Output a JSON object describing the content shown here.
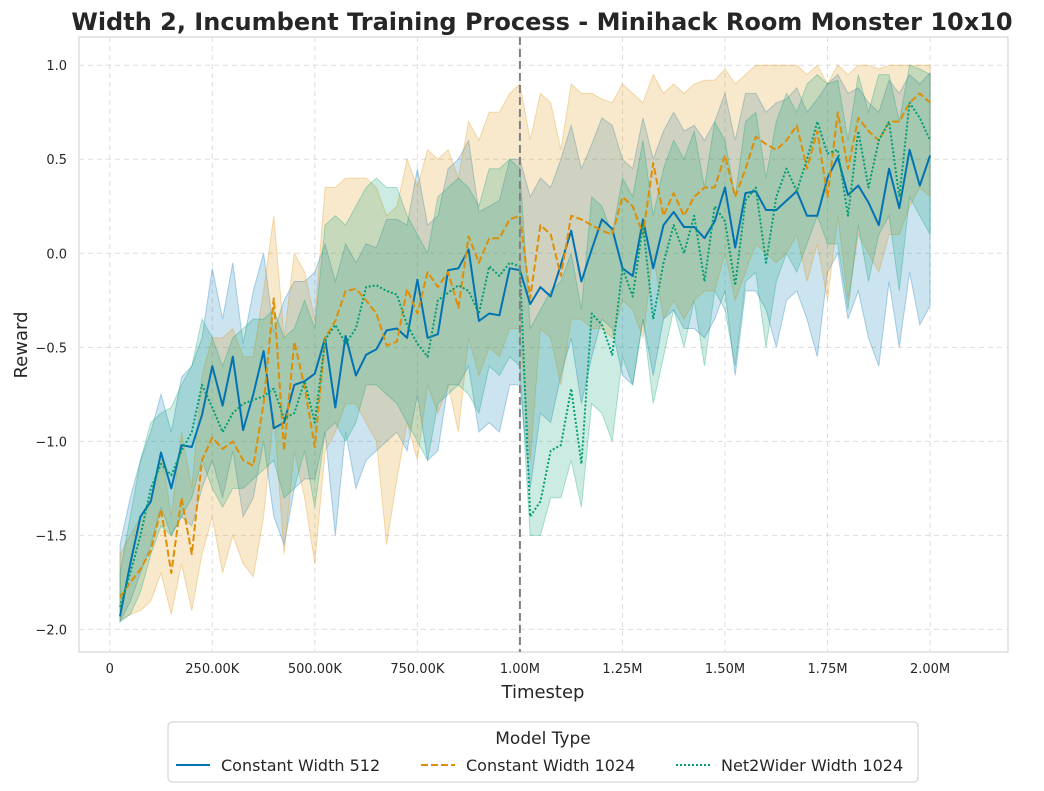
{
  "chart_data": {
    "type": "line",
    "title": "Width 2, Incumbent Training Process - Minihack Room Monster 10x10",
    "xlabel": "Timestep",
    "ylabel": "Reward",
    "xlim": [
      -75000,
      2190000
    ],
    "ylim": [
      -2.12,
      1.15
    ],
    "x_ticks": [
      0,
      250000,
      500000,
      750000,
      1000000,
      1250000,
      1500000,
      1750000,
      2000000
    ],
    "x_tick_labels": [
      "0",
      "250.00K",
      "500.00K",
      "750.00K",
      "1.00M",
      "1.25M",
      "1.50M",
      "1.75M",
      "2.00M"
    ],
    "y_ticks": [
      -2.0,
      -1.5,
      -1.0,
      -0.5,
      0.0,
      0.5,
      1.0
    ],
    "y_tick_labels": [
      "−2.0",
      "−1.5",
      "−1.0",
      "−0.5",
      "0.0",
      "0.5",
      "1.0"
    ],
    "grid": true,
    "vertical_line_x": 1000000,
    "legend": {
      "title": "Model Type",
      "placement": "below"
    },
    "x": [
      25000,
      50000,
      75000,
      100000,
      125000,
      150000,
      175000,
      200000,
      225000,
      250000,
      275000,
      300000,
      325000,
      350000,
      375000,
      400000,
      425000,
      450000,
      475000,
      500000,
      525000,
      550000,
      575000,
      600000,
      625000,
      650000,
      675000,
      700000,
      725000,
      750000,
      775000,
      800000,
      825000,
      850000,
      875000,
      900000,
      925000,
      950000,
      975000,
      1000000,
      1025000,
      1050000,
      1075000,
      1100000,
      1125000,
      1150000,
      1175000,
      1200000,
      1225000,
      1250000,
      1275000,
      1300000,
      1325000,
      1350000,
      1375000,
      1400000,
      1425000,
      1450000,
      1475000,
      1500000,
      1525000,
      1550000,
      1575000,
      1600000,
      1625000,
      1650000,
      1675000,
      1700000,
      1725000,
      1750000,
      1775000,
      1800000,
      1825000,
      1850000,
      1875000,
      1900000,
      1925000,
      1950000,
      1975000,
      2000000
    ],
    "series": [
      {
        "name": "Constant Width 512",
        "color": "#0173b2",
        "dash": "solid",
        "values": [
          -1.93,
          -1.65,
          -1.4,
          -1.32,
          -1.06,
          -1.25,
          -1.02,
          -1.03,
          -0.86,
          -0.6,
          -0.81,
          -0.55,
          -0.94,
          -0.75,
          -0.52,
          -0.93,
          -0.9,
          -0.7,
          -0.68,
          -0.64,
          -0.45,
          -0.82,
          -0.44,
          -0.65,
          -0.54,
          -0.51,
          -0.41,
          -0.4,
          -0.45,
          -0.14,
          -0.45,
          -0.43,
          -0.09,
          -0.08,
          0.02,
          -0.36,
          -0.32,
          -0.33,
          -0.08,
          -0.09,
          -0.27,
          -0.18,
          -0.23,
          -0.06,
          0.12,
          -0.15,
          0.02,
          0.18,
          0.13,
          -0.08,
          -0.12,
          0.18,
          -0.08,
          0.15,
          0.22,
          0.14,
          0.14,
          0.08,
          0.17,
          0.35,
          0.03,
          0.32,
          0.33,
          0.23,
          0.23,
          0.28,
          0.33,
          0.2,
          0.2,
          0.4,
          0.51,
          0.31,
          0.36,
          0.27,
          0.15,
          0.45,
          0.24,
          0.55,
          0.36,
          0.52
        ],
        "lower": [
          -1.96,
          -1.85,
          -1.7,
          -1.55,
          -1.35,
          -1.5,
          -1.4,
          -1.45,
          -1.25,
          -1.1,
          -1.3,
          -1.05,
          -1.4,
          -1.3,
          -1.0,
          -1.4,
          -1.55,
          -1.25,
          -1.2,
          -1.2,
          -0.95,
          -1.5,
          -0.95,
          -1.25,
          -1.1,
          -1.05,
          -1.0,
          -0.95,
          -1.05,
          -0.75,
          -1.1,
          -1.05,
          -0.7,
          -0.7,
          -0.6,
          -0.95,
          -0.9,
          -0.95,
          -0.7,
          -0.7,
          -1.25,
          -0.85,
          -0.9,
          -0.65,
          -0.45,
          -0.8,
          -0.55,
          -0.35,
          -0.4,
          -0.65,
          -0.7,
          -0.35,
          -0.65,
          -0.35,
          -0.3,
          -0.4,
          -0.4,
          -0.45,
          -0.35,
          -0.2,
          -0.65,
          -0.2,
          -0.2,
          -0.3,
          -0.5,
          -0.25,
          -0.2,
          -0.35,
          -0.55,
          -0.1,
          0.0,
          -0.35,
          -0.2,
          -0.45,
          -0.6,
          -0.15,
          -0.5,
          -0.1,
          -0.38,
          -0.28
        ],
        "upper": [
          -1.55,
          -1.3,
          -1.1,
          -0.95,
          -0.75,
          -0.95,
          -0.66,
          -0.6,
          -0.45,
          -0.08,
          -0.35,
          -0.05,
          -0.48,
          -0.2,
          0.0,
          -0.42,
          -0.25,
          -0.15,
          -0.15,
          -0.1,
          0.05,
          -0.15,
          0.05,
          -0.05,
          0.05,
          0.03,
          0.18,
          0.18,
          0.15,
          0.45,
          0.15,
          0.2,
          0.45,
          0.5,
          0.6,
          0.22,
          0.25,
          0.28,
          0.5,
          0.5,
          0.3,
          0.4,
          0.35,
          0.5,
          0.68,
          0.45,
          0.58,
          0.72,
          0.68,
          0.5,
          0.45,
          0.72,
          0.5,
          0.65,
          0.75,
          0.65,
          0.68,
          0.6,
          0.7,
          0.85,
          0.6,
          0.85,
          0.85,
          0.75,
          0.8,
          0.82,
          0.88,
          0.75,
          0.82,
          0.9,
          0.95,
          0.85,
          0.88,
          0.8,
          0.75,
          0.92,
          0.85,
          0.95,
          0.9,
          0.96
        ]
      },
      {
        "name": "Constant Width 1024",
        "color": "#de8f05",
        "dash": "dashed",
        "values": [
          -1.83,
          -1.75,
          -1.68,
          -1.58,
          -1.36,
          -1.7,
          -1.3,
          -1.6,
          -1.1,
          -0.98,
          -1.04,
          -1.0,
          -1.1,
          -1.13,
          -0.8,
          -0.24,
          -1.05,
          -0.47,
          -0.71,
          -1.03,
          -0.45,
          -0.36,
          -0.2,
          -0.19,
          -0.25,
          -0.32,
          -0.49,
          -0.47,
          -0.19,
          -0.32,
          -0.1,
          -0.18,
          -0.1,
          -0.29,
          0.09,
          -0.05,
          0.08,
          0.08,
          0.18,
          0.2,
          -0.24,
          0.15,
          0.1,
          -0.12,
          0.2,
          0.18,
          0.15,
          0.12,
          0.1,
          0.3,
          0.25,
          0.1,
          0.48,
          0.2,
          0.32,
          0.2,
          0.3,
          0.35,
          0.35,
          0.52,
          0.3,
          0.45,
          0.62,
          0.58,
          0.55,
          0.6,
          0.68,
          0.45,
          0.65,
          0.3,
          0.75,
          0.45,
          0.72,
          0.65,
          0.6,
          0.7,
          0.7,
          0.8,
          0.85,
          0.8
        ],
        "lower": [
          -1.95,
          -1.92,
          -1.9,
          -1.85,
          -1.7,
          -1.92,
          -1.65,
          -1.9,
          -1.6,
          -1.4,
          -1.7,
          -1.5,
          -1.65,
          -1.72,
          -1.4,
          -0.85,
          -1.6,
          -1.05,
          -1.3,
          -1.65,
          -1.05,
          -0.95,
          -0.8,
          -0.8,
          -0.9,
          -1.0,
          -1.55,
          -1.2,
          -0.9,
          -1.1,
          -0.7,
          -0.85,
          -0.7,
          -0.95,
          -0.45,
          -0.65,
          -0.5,
          -0.55,
          -0.4,
          -0.4,
          -1.1,
          -0.4,
          -0.45,
          -0.7,
          -0.35,
          -0.35,
          -0.4,
          -0.4,
          -0.45,
          -0.25,
          -0.3,
          -0.45,
          0.0,
          -0.35,
          -0.25,
          -0.35,
          -0.25,
          -0.2,
          -0.2,
          0.0,
          -0.25,
          -0.1,
          0.05,
          0.0,
          -0.05,
          0.0,
          0.1,
          -0.15,
          0.05,
          -0.25,
          0.2,
          -0.25,
          0.1,
          0.0,
          -0.1,
          0.1,
          0.1,
          0.25,
          0.35,
          0.3
        ],
        "upper": [
          -1.6,
          -1.5,
          -1.4,
          -1.3,
          -1.05,
          -1.4,
          -0.95,
          -1.25,
          -0.65,
          -0.45,
          -0.45,
          -0.4,
          -0.55,
          -0.55,
          -0.2,
          0.2,
          -0.45,
          0.0,
          -0.1,
          -0.35,
          0.35,
          0.35,
          0.4,
          0.4,
          0.4,
          0.35,
          0.2,
          0.25,
          0.5,
          0.35,
          0.55,
          0.5,
          0.55,
          0.4,
          0.7,
          0.6,
          0.75,
          0.75,
          0.85,
          0.9,
          0.6,
          0.85,
          0.8,
          0.55,
          0.9,
          0.85,
          0.85,
          0.82,
          0.8,
          0.9,
          0.85,
          0.8,
          0.95,
          0.85,
          0.9,
          0.85,
          0.9,
          0.92,
          0.92,
          0.98,
          0.9,
          0.95,
          1.0,
          1.0,
          1.0,
          1.0,
          1.0,
          0.95,
          1.0,
          0.9,
          1.0,
          0.95,
          1.0,
          1.0,
          0.98,
          1.0,
          1.0,
          1.0,
          1.0,
          1.0
        ]
      },
      {
        "name": "Net2Wider Width 1024",
        "color": "#029e73",
        "dash": "dotted",
        "values": [
          -1.88,
          -1.7,
          -1.5,
          -1.25,
          -1.12,
          -1.18,
          -1.05,
          -0.95,
          -0.7,
          -0.82,
          -0.95,
          -0.85,
          -0.8,
          -0.78,
          -0.76,
          -0.72,
          -0.88,
          -0.85,
          -0.68,
          -0.9,
          -0.46,
          -0.38,
          -0.48,
          -0.4,
          -0.18,
          -0.17,
          -0.2,
          -0.22,
          -0.38,
          -0.48,
          -0.55,
          -0.25,
          -0.21,
          -0.17,
          -0.2,
          -0.32,
          -0.07,
          -0.12,
          -0.05,
          -0.07,
          -1.4,
          -1.32,
          -1.05,
          -1.02,
          -0.72,
          -1.12,
          -0.32,
          -0.38,
          -0.54,
          -0.08,
          -0.23,
          0.15,
          -0.35,
          -0.05,
          0.15,
          0.0,
          0.2,
          -0.15,
          0.25,
          0.17,
          -0.17,
          0.28,
          0.35,
          -0.05,
          0.3,
          0.45,
          0.33,
          0.5,
          0.7,
          0.53,
          0.55,
          0.2,
          0.65,
          0.35,
          0.6,
          0.7,
          0.3,
          0.8,
          0.72,
          0.6
        ],
        "lower": [
          -1.96,
          -1.92,
          -1.8,
          -1.6,
          -1.45,
          -1.5,
          -1.4,
          -1.3,
          -1.1,
          -1.25,
          -1.35,
          -1.25,
          -1.25,
          -1.2,
          -1.15,
          -1.1,
          -1.3,
          -1.25,
          -1.05,
          -1.35,
          -0.95,
          -0.9,
          -1.0,
          -0.9,
          -0.7,
          -0.7,
          -0.75,
          -0.8,
          -0.9,
          -1.0,
          -1.1,
          -0.8,
          -0.75,
          -0.7,
          -0.75,
          -0.85,
          -0.6,
          -0.65,
          -0.55,
          -0.6,
          -1.5,
          -1.5,
          -1.3,
          -1.3,
          -1.1,
          -1.35,
          -0.8,
          -0.85,
          -1.0,
          -0.55,
          -0.7,
          -0.35,
          -0.8,
          -0.55,
          -0.3,
          -0.5,
          -0.25,
          -0.6,
          -0.2,
          -0.3,
          -0.6,
          -0.15,
          -0.1,
          -0.5,
          -0.15,
          0.0,
          -0.1,
          0.05,
          0.2,
          0.05,
          0.05,
          -0.3,
          0.15,
          -0.15,
          0.1,
          0.2,
          -0.2,
          0.3,
          0.2,
          0.1
        ],
        "upper": [
          -1.7,
          -1.4,
          -1.1,
          -0.9,
          -0.85,
          -0.82,
          -0.7,
          -0.6,
          -0.35,
          -0.45,
          -0.6,
          -0.45,
          -0.4,
          -0.35,
          -0.35,
          -0.3,
          -0.45,
          -0.4,
          -0.25,
          -0.4,
          0.15,
          0.2,
          0.15,
          0.25,
          0.35,
          0.4,
          0.35,
          0.35,
          0.2,
          0.1,
          0.0,
          0.3,
          0.35,
          0.4,
          0.35,
          0.25,
          0.45,
          0.45,
          0.5,
          0.45,
          -0.4,
          -0.3,
          -0.2,
          -0.15,
          0.0,
          -0.3,
          0.3,
          0.25,
          0.1,
          0.4,
          0.3,
          0.6,
          0.2,
          0.45,
          0.6,
          0.5,
          0.65,
          0.35,
          0.7,
          0.6,
          0.3,
          0.7,
          0.75,
          0.4,
          0.7,
          0.85,
          0.75,
          0.9,
          0.95,
          0.9,
          0.92,
          0.6,
          0.95,
          0.75,
          0.95,
          0.95,
          0.7,
          1.0,
          0.98,
          0.95
        ]
      }
    ]
  }
}
